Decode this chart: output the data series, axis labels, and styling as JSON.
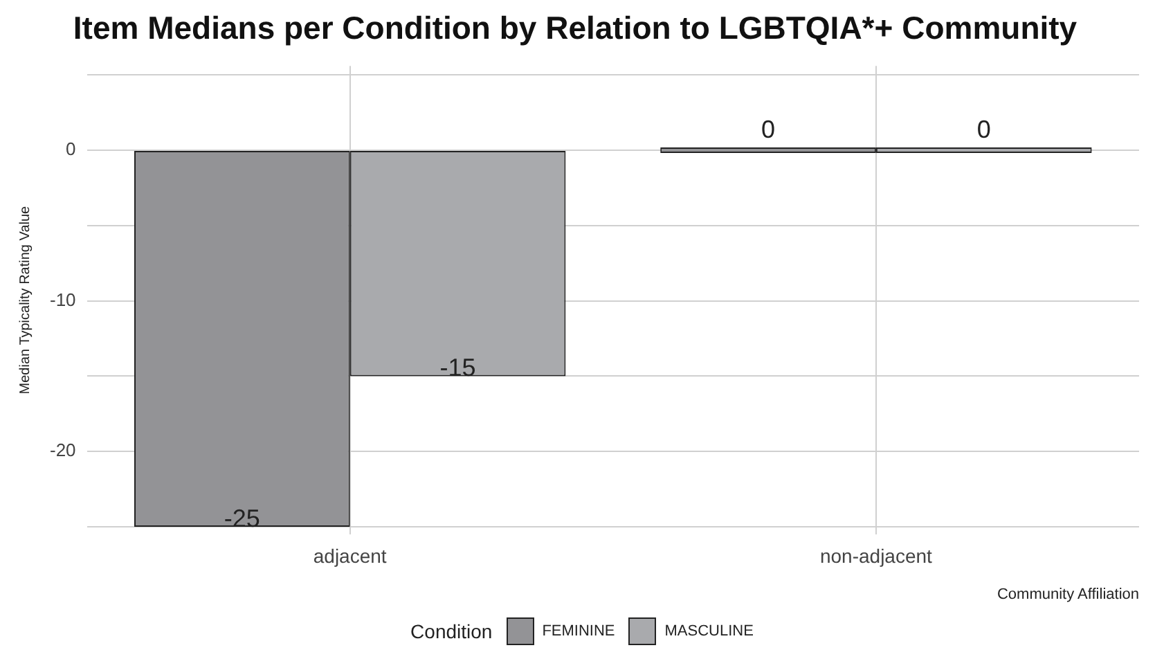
{
  "chart_data": {
    "type": "bar",
    "title": "Item Medians per Condition by Relation to LGBTQIA*+ Community",
    "xlabel": "Community Affiliation",
    "ylabel": "Median Typicality Rating Value",
    "legend_title": "Condition",
    "categories": [
      "adjacent",
      "non-adjacent"
    ],
    "series": [
      {
        "name": "FEMININE",
        "color": "#939396",
        "values": [
          -25,
          0
        ]
      },
      {
        "name": "MASCULINE",
        "color": "#a9aaad",
        "values": [
          -15,
          0
        ]
      }
    ],
    "ylim": [
      -25.5,
      5.6
    ],
    "yticks": [
      {
        "value": -25,
        "label": null
      },
      -20,
      {
        "value": -15,
        "label": null
      },
      -10,
      {
        "value": -5,
        "label": null
      },
      0,
      {
        "value": 5,
        "label": null
      }
    ],
    "grid": true,
    "legend": "bottom",
    "data_labels": true
  }
}
